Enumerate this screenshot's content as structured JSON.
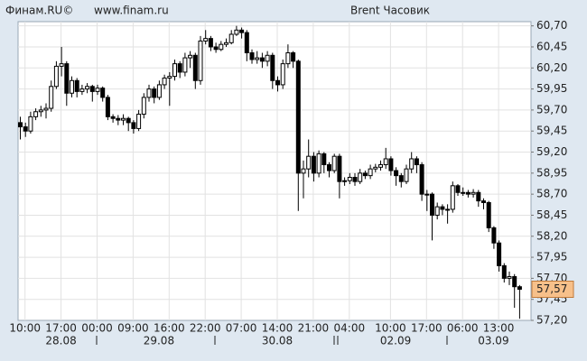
{
  "chart_data": {
    "type": "candlestick",
    "source": "Финам.RU©",
    "url": "www.finam.ru",
    "title": "Brent Часовик",
    "up_color": "#ffffff",
    "down_color": "#000000",
    "grid": true,
    "ylim": [
      57.2,
      60.75
    ],
    "yticks": [
      {
        "value": 60.7,
        "label": "60,70"
      },
      {
        "value": 60.45,
        "label": "60,45"
      },
      {
        "value": 60.2,
        "label": "60,20"
      },
      {
        "value": 59.95,
        "label": "59,95"
      },
      {
        "value": 59.7,
        "label": "59,70"
      },
      {
        "value": 59.45,
        "label": "59,45"
      },
      {
        "value": 59.2,
        "label": "59,20"
      },
      {
        "value": 58.95,
        "label": "58,95"
      },
      {
        "value": 58.7,
        "label": "58,70"
      },
      {
        "value": 58.45,
        "label": "58,45"
      },
      {
        "value": 58.2,
        "label": "58,20"
      },
      {
        "value": 57.95,
        "label": "57,95"
      },
      {
        "value": 57.7,
        "label": "57,70"
      },
      {
        "value": 57.45,
        "label": "57,45"
      },
      {
        "value": 57.2,
        "label": "57,20"
      }
    ],
    "last_price": {
      "value": 57.57,
      "label": "57,57"
    },
    "categories": [
      null,
      "10:00",
      null,
      null,
      null,
      null,
      null,
      null,
      "17:00",
      null,
      null,
      null,
      null,
      null,
      null,
      "00:00",
      null,
      null,
      null,
      null,
      null,
      null,
      "09:00",
      null,
      null,
      null,
      null,
      null,
      null,
      "16:00",
      null,
      null,
      null,
      null,
      null,
      null,
      "22:00",
      null,
      null,
      null,
      null,
      null,
      null,
      "07:00",
      null,
      null,
      null,
      null,
      null,
      null,
      "14:00",
      null,
      null,
      null,
      null,
      null,
      null,
      "21:00",
      null,
      null,
      null,
      null,
      null,
      null,
      "04:00",
      null,
      null,
      null,
      null,
      null,
      null,
      null,
      "10:00",
      null,
      null,
      null,
      null,
      null,
      null,
      "17:00",
      null,
      null,
      null,
      null,
      null,
      null,
      "06:00",
      null,
      null,
      null,
      null,
      null,
      null,
      "13:00",
      null,
      null,
      null,
      null
    ],
    "dates": [
      null,
      null,
      null,
      null,
      null,
      null,
      null,
      null,
      "28.08",
      null,
      null,
      null,
      null,
      null,
      null,
      null,
      null,
      null,
      null,
      null,
      null,
      null,
      null,
      null,
      null,
      null,
      null,
      "29.08",
      null,
      null,
      null,
      null,
      null,
      null,
      null,
      null,
      null,
      null,
      null,
      null,
      null,
      null,
      null,
      null,
      null,
      null,
      null,
      null,
      null,
      null,
      "30.08",
      null,
      null,
      null,
      null,
      null,
      null,
      null,
      null,
      null,
      null,
      null,
      null,
      null,
      null,
      null,
      null,
      null,
      null,
      null,
      null,
      null,
      null,
      "02.09",
      null,
      null,
      null,
      null,
      null,
      null,
      null,
      null,
      null,
      null,
      null,
      null,
      null,
      null,
      null,
      null,
      null,
      null,
      "03.09",
      null,
      null,
      null,
      null,
      null
    ],
    "candles": [
      [
        59.55,
        59.62,
        59.35,
        59.5
      ],
      [
        59.5,
        59.55,
        59.38,
        59.45
      ],
      [
        59.45,
        59.68,
        59.42,
        59.62
      ],
      [
        59.62,
        59.72,
        59.58,
        59.68
      ],
      [
        59.68,
        59.75,
        59.62,
        59.7
      ],
      [
        59.7,
        59.78,
        59.6,
        59.72
      ],
      [
        59.72,
        60.05,
        59.68,
        59.98
      ],
      [
        59.98,
        60.28,
        59.95,
        60.22
      ],
      [
        60.22,
        60.45,
        60.1,
        60.25
      ],
      [
        60.25,
        60.28,
        59.75,
        59.9
      ],
      [
        59.9,
        60.1,
        59.85,
        60.05
      ],
      [
        60.05,
        60.08,
        59.85,
        59.92
      ],
      [
        59.92,
        60.0,
        59.88,
        59.95
      ],
      [
        59.95,
        60.02,
        59.9,
        59.98
      ],
      [
        59.98,
        60.0,
        59.8,
        59.92
      ],
      [
        59.92,
        60.0,
        59.88,
        59.96
      ],
      [
        59.96,
        59.98,
        59.8,
        59.85
      ],
      [
        59.85,
        59.88,
        59.58,
        59.62
      ],
      [
        59.62,
        59.65,
        59.55,
        59.6
      ],
      [
        59.6,
        59.64,
        59.52,
        59.58
      ],
      [
        59.58,
        59.65,
        59.52,
        59.6
      ],
      [
        59.6,
        59.62,
        59.45,
        59.55
      ],
      [
        59.55,
        59.58,
        59.42,
        59.48
      ],
      [
        59.48,
        59.7,
        59.45,
        59.65
      ],
      [
        59.65,
        59.9,
        59.6,
        59.85
      ],
      [
        59.85,
        60.0,
        59.8,
        59.95
      ],
      [
        59.95,
        59.98,
        59.78,
        59.85
      ],
      [
        59.85,
        60.05,
        59.82,
        60.0
      ],
      [
        60.0,
        60.12,
        59.95,
        60.08
      ],
      [
        60.08,
        60.15,
        59.75,
        60.1
      ],
      [
        60.1,
        60.3,
        60.05,
        60.25
      ],
      [
        60.25,
        60.28,
        60.08,
        60.15
      ],
      [
        60.15,
        60.38,
        60.1,
        60.32
      ],
      [
        60.32,
        60.4,
        60.2,
        60.35
      ],
      [
        60.35,
        60.38,
        59.95,
        60.05
      ],
      [
        60.05,
        60.58,
        60.0,
        60.52
      ],
      [
        60.52,
        60.65,
        60.48,
        60.55
      ],
      [
        60.55,
        60.58,
        60.4,
        60.45
      ],
      [
        60.45,
        60.5,
        60.38,
        60.42
      ],
      [
        60.42,
        60.52,
        60.4,
        60.48
      ],
      [
        60.48,
        60.55,
        60.45,
        60.5
      ],
      [
        60.5,
        60.65,
        60.48,
        60.6
      ],
      [
        60.6,
        60.7,
        60.58,
        60.65
      ],
      [
        60.65,
        60.68,
        60.55,
        60.62
      ],
      [
        60.62,
        60.65,
        60.28,
        60.38
      ],
      [
        60.38,
        60.42,
        60.25,
        60.3
      ],
      [
        60.3,
        60.4,
        60.25,
        60.32
      ],
      [
        60.32,
        60.38,
        60.2,
        60.28
      ],
      [
        60.28,
        60.4,
        60.22,
        60.35
      ],
      [
        60.35,
        60.38,
        59.95,
        60.05
      ],
      [
        60.05,
        60.1,
        59.92,
        60.0
      ],
      [
        60.0,
        60.3,
        59.95,
        60.25
      ],
      [
        60.25,
        60.48,
        60.2,
        60.38
      ],
      [
        60.38,
        60.4,
        60.2,
        60.28
      ],
      [
        60.28,
        60.3,
        58.5,
        58.95
      ],
      [
        58.95,
        59.1,
        58.65,
        59.0
      ],
      [
        59.0,
        59.35,
        58.9,
        59.15
      ],
      [
        59.15,
        59.2,
        58.85,
        58.95
      ],
      [
        58.95,
        59.22,
        58.9,
        59.18
      ],
      [
        59.18,
        59.2,
        58.95,
        59.05
      ],
      [
        59.05,
        59.08,
        58.9,
        58.98
      ],
      [
        58.98,
        59.18,
        58.95,
        59.15
      ],
      [
        59.15,
        59.18,
        58.65,
        58.85
      ],
      [
        58.85,
        58.9,
        58.8,
        58.86
      ],
      [
        58.86,
        58.95,
        58.82,
        58.9
      ],
      [
        58.9,
        58.95,
        58.8,
        58.85
      ],
      [
        58.85,
        59.0,
        58.82,
        58.95
      ],
      [
        58.95,
        58.98,
        58.88,
        58.92
      ],
      [
        58.92,
        59.05,
        58.88,
        59.0
      ],
      [
        59.0,
        59.06,
        58.96,
        59.02
      ],
      [
        59.02,
        59.1,
        58.98,
        59.05
      ],
      [
        59.05,
        59.25,
        59.0,
        59.12
      ],
      [
        59.12,
        59.15,
        58.92,
        58.98
      ],
      [
        58.98,
        59.02,
        58.8,
        58.92
      ],
      [
        58.92,
        58.95,
        58.78,
        58.85
      ],
      [
        58.85,
        59.05,
        58.82,
        59.0
      ],
      [
        59.0,
        59.2,
        58.95,
        59.12
      ],
      [
        59.12,
        59.15,
        58.95,
        59.05
      ],
      [
        59.05,
        59.08,
        58.62,
        58.7
      ],
      [
        58.7,
        58.75,
        58.5,
        58.7
      ],
      [
        58.7,
        58.72,
        58.15,
        58.45
      ],
      [
        58.45,
        58.6,
        58.4,
        58.55
      ],
      [
        58.55,
        58.58,
        58.45,
        58.52
      ],
      [
        58.52,
        58.58,
        58.35,
        58.52
      ],
      [
        58.52,
        58.85,
        58.48,
        58.8
      ],
      [
        58.8,
        58.82,
        58.68,
        58.72
      ],
      [
        58.72,
        58.78,
        58.68,
        58.72
      ],
      [
        58.72,
        58.75,
        58.66,
        58.7
      ],
      [
        58.7,
        58.76,
        58.66,
        58.72
      ],
      [
        58.72,
        58.75,
        58.55,
        58.62
      ],
      [
        58.62,
        58.65,
        58.52,
        58.6
      ],
      [
        58.6,
        58.62,
        58.25,
        58.3
      ],
      [
        58.3,
        58.32,
        58.05,
        58.12
      ],
      [
        58.12,
        58.15,
        57.78,
        57.85
      ],
      [
        57.85,
        57.88,
        57.65,
        57.7
      ],
      [
        57.7,
        57.78,
        57.62,
        57.72
      ],
      [
        57.72,
        57.75,
        57.35,
        57.6
      ],
      [
        57.6,
        57.62,
        57.22,
        57.57
      ]
    ]
  }
}
